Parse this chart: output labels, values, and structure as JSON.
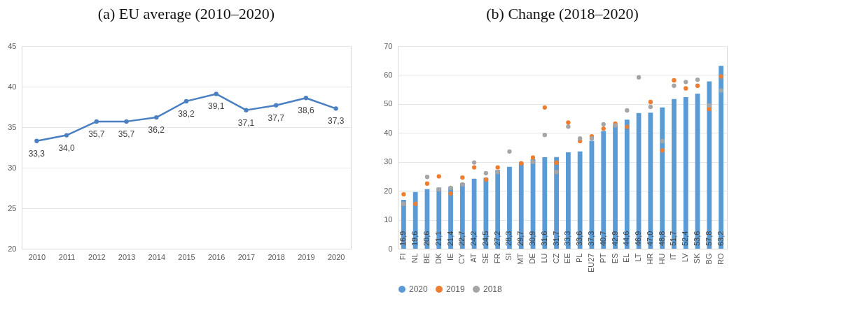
{
  "chart_data": [
    {
      "type": "line",
      "title": "(a)  EU average (2010–2020)",
      "categories": [
        "2010",
        "2011",
        "2012",
        "2013",
        "2014",
        "2015",
        "2016",
        "2017",
        "2018",
        "2019",
        "2020"
      ],
      "values": [
        33.3,
        34.0,
        35.7,
        35.7,
        36.2,
        38.2,
        39.1,
        37.1,
        37.7,
        38.6,
        37.3
      ],
      "value_labels": [
        "33,3",
        "34,0",
        "35,7",
        "35,7",
        "36,2",
        "38,2",
        "39,1",
        "37,1",
        "37,7",
        "38,6",
        "37,3"
      ],
      "color": "#4a7fc1",
      "ylim": [
        20,
        45
      ],
      "yticks": [
        20,
        25,
        30,
        35,
        40,
        45
      ],
      "grid": "y",
      "marker": "circle"
    },
    {
      "type": "bar",
      "title": "(b)  Change (2018–2020)",
      "categories": [
        "FI",
        "NL",
        "BE",
        "DK",
        "IE",
        "CY",
        "AT",
        "SE",
        "FR",
        "SI",
        "MT",
        "DE",
        "LU",
        "CZ",
        "EE",
        "PL",
        "EU27",
        "PT",
        "ES",
        "EL",
        "LT",
        "HR",
        "HU",
        "IT",
        "LV",
        "SK",
        "BG",
        "RO"
      ],
      "series": [
        {
          "name": "2020",
          "type": "bar",
          "color": "#5b9bd5",
          "values": [
            16.9,
            19.6,
            20.6,
            21.1,
            21.4,
            22.7,
            24.2,
            24.5,
            27.2,
            28.3,
            29.7,
            30.9,
            31.6,
            31.7,
            33.3,
            33.6,
            37.3,
            40.7,
            42.9,
            44.6,
            46.9,
            47.0,
            48.8,
            51.7,
            52.4,
            53.6,
            57.8,
            63.2
          ],
          "value_labels": [
            "16,9",
            "19,6",
            "20,6",
            "21,1",
            "21,4",
            "22,7",
            "24,2",
            "24,5",
            "27,2",
            "28,3",
            "29,7",
            "30,9",
            "31,6",
            "31,7",
            "33,3",
            "33,6",
            "37,3",
            "40,7",
            "42,9",
            "44,6",
            "46,9",
            "47,0",
            "48,8",
            "51,7",
            "52,4",
            "53,6",
            "57,8",
            "63,2"
          ]
        },
        {
          "name": "2019",
          "type": "scatter",
          "color": "#ed7d31",
          "values": [
            18.8,
            15.5,
            22.5,
            25.0,
            19.1,
            24.6,
            28.1,
            23.9,
            28.1,
            null,
            29.5,
            31.5,
            48.8,
            29.7,
            43.6,
            37.2,
            38.8,
            41.5,
            43.2,
            42.1,
            null,
            50.7,
            34.0,
            58.2,
            55.4,
            56.3,
            48.3,
            59.5
          ]
        },
        {
          "name": "2018",
          "type": "scatter",
          "color": "#a5a5a5",
          "values": [
            15.5,
            null,
            24.8,
            20.5,
            21.0,
            22.2,
            29.8,
            26.1,
            26.5,
            33.6,
            null,
            30.0,
            39.3,
            26.5,
            42.2,
            38.1,
            38.1,
            43.0,
            42.6,
            47.8,
            59.2,
            49.0,
            37.2,
            56.3,
            57.6,
            58.4,
            49.5,
            54.7
          ]
        }
      ],
      "ylim": [
        0,
        70
      ],
      "yticks": [
        0,
        10,
        20,
        30,
        40,
        50,
        60,
        70
      ],
      "grid": "y",
      "legend": "bottom",
      "marker": "circle"
    }
  ]
}
